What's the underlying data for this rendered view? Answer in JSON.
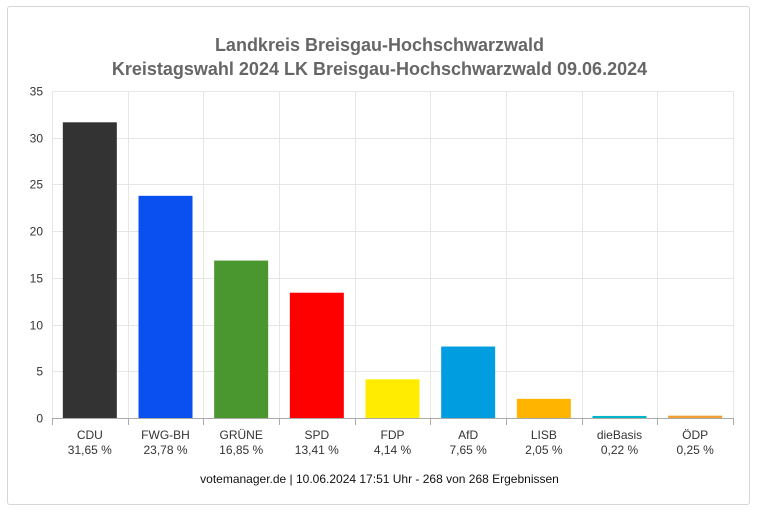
{
  "chart_data": {
    "type": "bar",
    "title": "Landkreis Breisgau-Hochschwarzwald",
    "subtitle": "Kreistagswahl 2024 LK Breisgau-Hochschwarzwald 09.06.2024",
    "categories": [
      "CDU",
      "FWG-BH",
      "GRÜNE",
      "SPD",
      "FDP",
      "AfD",
      "LISB",
      "dieBasis",
      "ÖDP"
    ],
    "values": [
      31.65,
      23.78,
      16.85,
      13.41,
      4.14,
      7.65,
      2.05,
      0.22,
      0.25
    ],
    "value_labels": [
      "31,65 %",
      "23,78 %",
      "16,85 %",
      "13,41 %",
      "4,14 %",
      "7,65 %",
      "2,05 %",
      "0,22 %",
      "0,25 %"
    ],
    "colors": [
      "#333333",
      "#0a50f0",
      "#4a962f",
      "#ff0000",
      "#ffec00",
      "#009ee0",
      "#ffb400",
      "#00b4c8",
      "#f0a032"
    ],
    "yticks": [
      0,
      5,
      10,
      15,
      20,
      25,
      30,
      35
    ],
    "ylim": [
      0,
      35
    ],
    "grid": true,
    "legend": "none",
    "xlabel": "",
    "ylabel": ""
  },
  "footer": "votemanager.de | 10.06.2024 17:51 Uhr - 268 von 268 Ergebnissen"
}
